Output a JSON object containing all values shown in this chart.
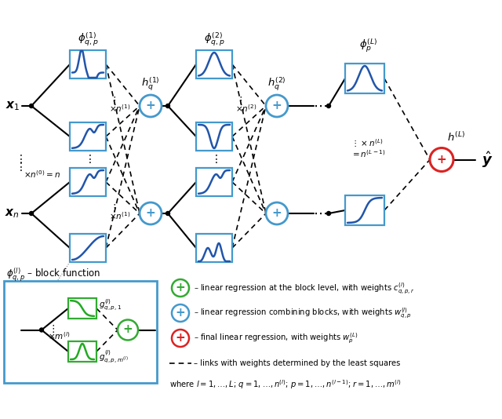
{
  "bg_color": "#ffffff",
  "blue_color": "#4499cc",
  "green_color": "#33aa33",
  "red_color": "#dd2222",
  "black": "#000000",
  "curve_blue": "#2255aa",
  "curve_green": "#22aa22",
  "fig_w": 6.4,
  "fig_h": 5.34,
  "dpi": 100
}
